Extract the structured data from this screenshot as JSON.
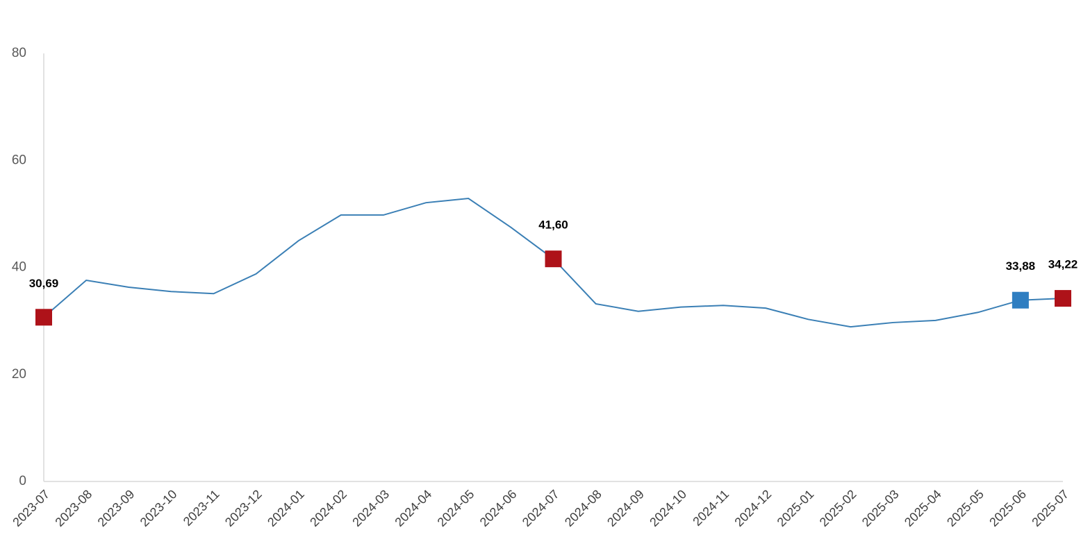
{
  "chart_data": {
    "type": "line",
    "categories": [
      "2023-07",
      "2023-08",
      "2023-09",
      "2023-10",
      "2023-11",
      "2023-12",
      "2024-01",
      "2024-02",
      "2024-03",
      "2024-04",
      "2024-05",
      "2024-06",
      "2024-07",
      "2024-08",
      "2024-09",
      "2024-10",
      "2024-11",
      "2024-12",
      "2025-01",
      "2025-02",
      "2025-03",
      "2025-04",
      "2025-05",
      "2025-06",
      "2025-07"
    ],
    "series": [
      {
        "color": "#3a7fb5",
        "values": [
          30.69,
          37.6,
          36.3,
          35.5,
          35.1,
          38.8,
          45.0,
          49.8,
          49.8,
          52.1,
          52.9,
          47.5,
          41.6,
          33.2,
          31.8,
          32.6,
          32.9,
          32.4,
          30.3,
          28.9,
          29.7,
          30.1,
          31.6,
          33.88,
          34.22
        ],
        "value_labels": [
          "30,69",
          null,
          null,
          null,
          null,
          null,
          null,
          null,
          null,
          null,
          null,
          null,
          "41,60",
          null,
          null,
          null,
          null,
          null,
          null,
          null,
          null,
          null,
          null,
          "33,88",
          "34,22"
        ],
        "marker_colors": [
          "#ae1219",
          null,
          null,
          null,
          null,
          null,
          null,
          null,
          null,
          null,
          null,
          null,
          "#ae1219",
          null,
          null,
          null,
          null,
          null,
          null,
          null,
          null,
          null,
          null,
          "#2f7ec1",
          "#ae1219"
        ]
      }
    ],
    "ylim": [
      0,
      80
    ],
    "yticks": [
      0,
      20,
      40,
      60,
      80
    ],
    "grid": false
  }
}
